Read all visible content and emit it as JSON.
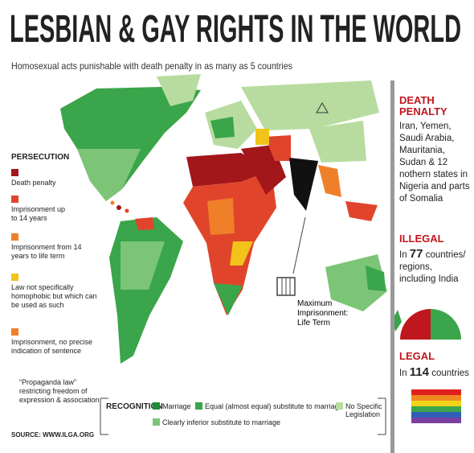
{
  "title": "LESBIAN & GAY RIGHTS IN THE WORLD",
  "subtitle": "Homosexual acts punishable with death penalty in as many as 5 countries",
  "persecution": {
    "heading": "PERSECUTION",
    "items": [
      "Death penalty",
      "Imprisonment up to 14 years",
      "Imprisonment from 14 years to life term",
      "Law not specifically homophobic but which can be used as such",
      "Imprisonment, no precise indication of sentence",
      "“Propaganda law” restricting freedom of expression & association"
    ]
  },
  "callout": "Maximum Imprisonment: Life Term",
  "death_penalty": {
    "heading": "DEATH PENALTY",
    "text": "Iran, Yemen, Saudi Arabia, Mauritania, Sudan & 12 nothern states in Nigeria and parts of Somalia"
  },
  "illegal": {
    "heading": "ILLEGAL",
    "prefix": "In",
    "number": "77",
    "suffix": "countries/ regions, including India"
  },
  "legal": {
    "heading": "LEGAL",
    "prefix": "In",
    "number": "114",
    "suffix": "countries"
  },
  "recognition": {
    "heading": "RECOGNITION",
    "items": [
      "Marriage",
      "Equal (almost equal) substitute to marriage",
      "Clearly inferior substitute to marriage",
      "No Specific Legislation"
    ]
  },
  "source": "SOURCE: WWW.ILGA.ORG"
}
